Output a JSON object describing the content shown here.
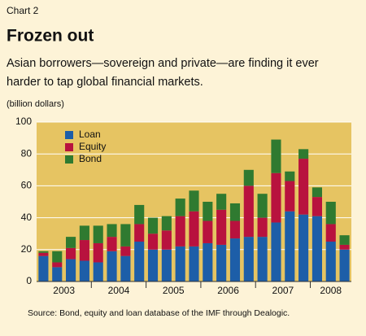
{
  "chart_data": {
    "type": "stacked_bar",
    "label": "Chart 2",
    "title": "Frozen out",
    "subtitle": [
      "Asian borrowers—sovereign and private—are finding it ever",
      "harder to tap global financial markets."
    ],
    "y_label": "(billion dollars)",
    "source": "Source: Bond, equity and loan database of the IMF through Dealogic.",
    "categories": [
      "2003",
      null,
      null,
      null,
      "2004",
      null,
      null,
      null,
      "2005",
      null,
      null,
      null,
      "2006",
      null,
      null,
      null,
      "2007",
      null,
      null,
      null,
      "2008",
      null,
      null
    ],
    "series": [
      {
        "name": "Loan",
        "color": "#1d5ea8",
        "values": [
          16,
          9,
          14,
          13,
          12,
          19,
          16,
          25,
          20,
          20,
          22,
          22,
          24,
          23,
          27,
          28,
          28,
          37,
          44,
          42,
          41,
          25,
          20
        ]
      },
      {
        "name": "Equity",
        "color": "#b8123e",
        "values": [
          2,
          3,
          7,
          13,
          12,
          9,
          6,
          11,
          10,
          12,
          19,
          22,
          14,
          22,
          11,
          32,
          12,
          31,
          19,
          35,
          12,
          11,
          3
        ]
      },
      {
        "name": "Bond",
        "color": "#2f7a30",
        "values": [
          1,
          7,
          7,
          9,
          11,
          8,
          14,
          12,
          10,
          9,
          11,
          13,
          12,
          10,
          11,
          10,
          15,
          21,
          6,
          6,
          6,
          14,
          6
        ]
      }
    ],
    "ylim": [
      0,
      100
    ],
    "yticks": [
      0,
      20,
      40,
      60,
      80,
      100
    ],
    "grid": true
  }
}
